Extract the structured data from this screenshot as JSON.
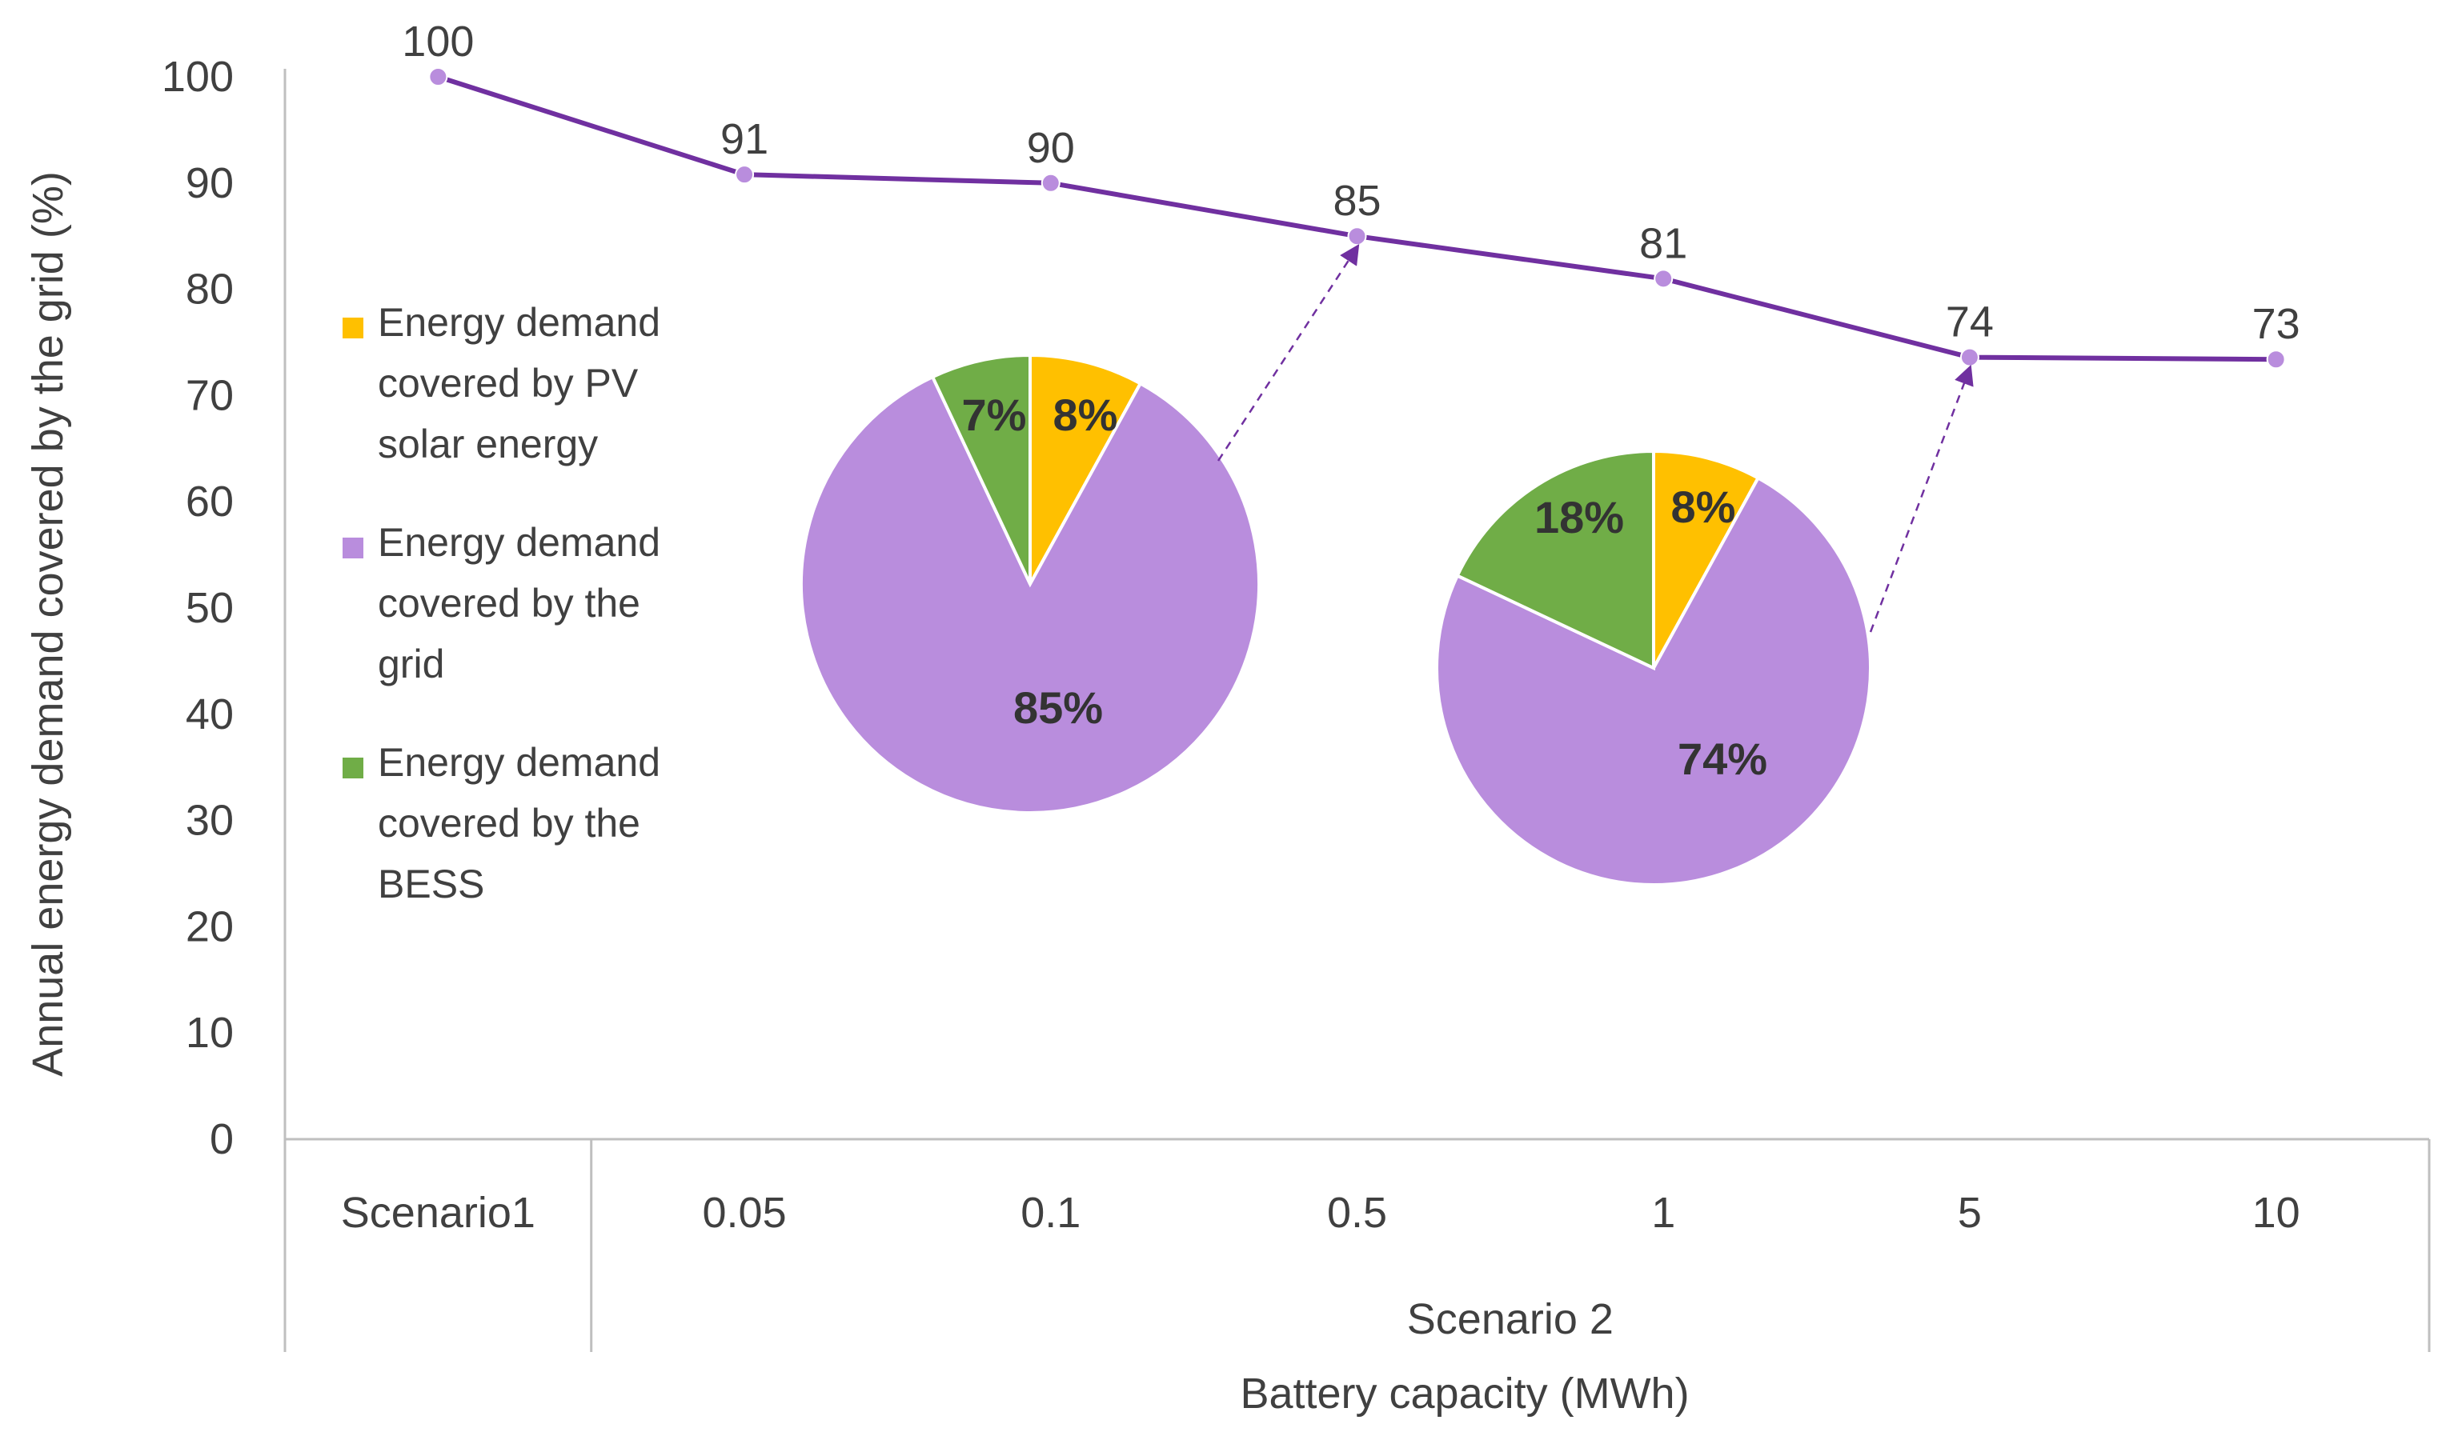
{
  "chart_data": [
    {
      "type": "line",
      "title": "",
      "ylabel": "Annual energy demand covered by the grid (%)",
      "xlabel": "Battery capacity (MWh)",
      "ylim": [
        0,
        100
      ],
      "yticks": [
        "0",
        "10",
        "20",
        "30",
        "40",
        "50",
        "60",
        "70",
        "80",
        "90",
        "100"
      ],
      "groups": [
        {
          "label": "",
          "categories": [
            "Scenario1"
          ]
        },
        {
          "label": "Scenario 2",
          "categories": [
            "0.05",
            "0.1",
            "0.5",
            "1",
            "5",
            "10"
          ]
        }
      ],
      "categories": [
        "Scenario1",
        "0.05",
        "0.1",
        "0.5",
        "1",
        "5",
        "10"
      ],
      "series": [
        {
          "name": "Energy demand covered by the grid",
          "values": [
            100,
            90.8,
            90,
            85,
            81,
            73.6,
            73.4
          ],
          "data_labels": [
            "100",
            "91",
            "90",
            "85",
            "81",
            "74",
            "73"
          ],
          "color": "#7030a0",
          "marker_color": "#b98ddd"
        }
      ],
      "grid": false
    },
    {
      "type": "pie",
      "linked_category": "0.5",
      "slices": [
        {
          "name": "Energy demand covered by PV solar energy",
          "value": 8,
          "label": "8%",
          "color": "#ffc000"
        },
        {
          "name": "Energy demand covered by the grid",
          "value": 85,
          "label": "85%",
          "color": "#b98ddd"
        },
        {
          "name": "Energy demand covered by the BESS",
          "value": 7,
          "label": "7%",
          "color": "#70ad47"
        }
      ]
    },
    {
      "type": "pie",
      "linked_category": "5",
      "slices": [
        {
          "name": "Energy demand covered by PV solar energy",
          "value": 8,
          "label": "8%",
          "color": "#ffc000"
        },
        {
          "name": "Energy demand covered by the grid",
          "value": 74,
          "label": "74%",
          "color": "#b98ddd"
        },
        {
          "name": "Energy demand covered by the BESS",
          "value": 18,
          "label": "18%",
          "color": "#70ad47"
        }
      ]
    }
  ],
  "legend": {
    "placement": "left-inside",
    "items": [
      {
        "lines": [
          "Energy demand",
          "covered by PV",
          "solar energy"
        ],
        "color": "#ffc000"
      },
      {
        "lines": [
          "Energy demand",
          "covered by the",
          "grid"
        ],
        "color": "#b98ddd"
      },
      {
        "lines": [
          "Energy demand",
          "covered by the",
          "BESS"
        ],
        "color": "#70ad47"
      }
    ]
  }
}
